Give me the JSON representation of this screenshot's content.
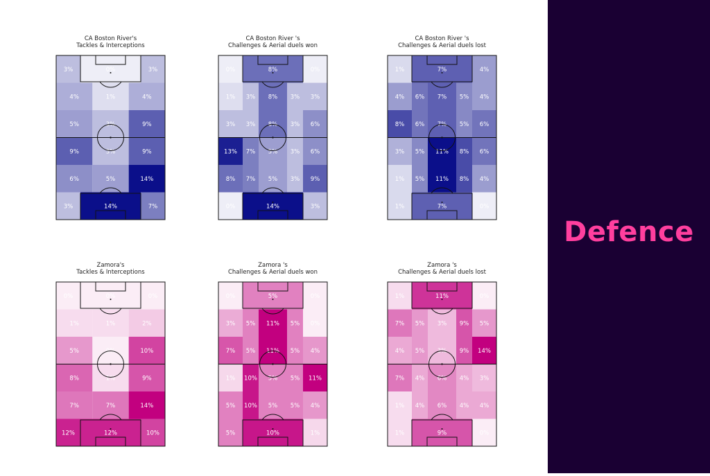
{
  "sidebar": {
    "title": "Defence",
    "background": "#1a0033",
    "color": "#ff3f9e"
  },
  "chart_data": [
    {
      "type": "heatmap",
      "title": [
        "CA Boston River's",
        "Tackles & Interceptions"
      ],
      "team": "CA Boston River",
      "color": "#0b0f8a",
      "values": [
        [
          3,
          0,
          3
        ],
        [
          4,
          1,
          4
        ],
        [
          5,
          3,
          9
        ],
        [
          9,
          3,
          9
        ],
        [
          6,
          5,
          14
        ],
        [
          3,
          14,
          7
        ]
      ]
    },
    {
      "type": "heatmap",
      "title": [
        "CA Boston River 's",
        "Challenges & Aerial duels won"
      ],
      "team": "CA Boston River",
      "color": "#0b0f8a",
      "values": [
        [
          0,
          8,
          0
        ],
        [
          1,
          3,
          8,
          3,
          3
        ],
        [
          3,
          3,
          8,
          3,
          6
        ],
        [
          13,
          7,
          5,
          3,
          6
        ],
        [
          8,
          7,
          5,
          3,
          9
        ],
        [
          0,
          14,
          3
        ]
      ]
    },
    {
      "type": "heatmap",
      "title": [
        "CA Boston River 's",
        "Challenges & Aerial duels lost"
      ],
      "team": "CA Boston River",
      "color": "#0b0f8a",
      "values": [
        [
          1,
          7,
          4
        ],
        [
          4,
          6,
          7,
          5,
          4
        ],
        [
          8,
          6,
          7,
          5,
          6
        ],
        [
          3,
          5,
          11,
          8,
          6
        ],
        [
          1,
          5,
          11,
          8,
          4
        ],
        [
          1,
          7,
          0
        ]
      ]
    },
    {
      "type": "heatmap",
      "title": [
        "Zamora's",
        "Tackles & Interceptions"
      ],
      "team": "Zamora",
      "color": "#c2007f",
      "values": [
        [
          0,
          0,
          0
        ],
        [
          1,
          1,
          2
        ],
        [
          5,
          0,
          10
        ],
        [
          8,
          1,
          9
        ],
        [
          7,
          7,
          14
        ],
        [
          12,
          12,
          10
        ]
      ]
    },
    {
      "type": "heatmap",
      "title": [
        "Zamora 's",
        "Challenges & Aerial duels won"
      ],
      "team": "Zamora",
      "color": "#c2007f",
      "values": [
        [
          0,
          5,
          0
        ],
        [
          3,
          5,
          11,
          5,
          0
        ],
        [
          7,
          5,
          11,
          5,
          4
        ],
        [
          1,
          10,
          5,
          5,
          11
        ],
        [
          5,
          10,
          5,
          5,
          4
        ],
        [
          5,
          10,
          1
        ]
      ]
    },
    {
      "type": "heatmap",
      "title": [
        "Zamora 's",
        "Challenges & Aerial duels lost"
      ],
      "team": "Zamora",
      "color": "#c2007f",
      "values": [
        [
          1,
          11,
          0
        ],
        [
          7,
          5,
          3,
          9,
          5
        ],
        [
          4,
          5,
          3,
          9,
          14
        ],
        [
          7,
          4,
          6,
          4,
          3
        ],
        [
          1,
          4,
          6,
          4,
          4
        ],
        [
          1,
          9,
          0
        ]
      ]
    }
  ]
}
